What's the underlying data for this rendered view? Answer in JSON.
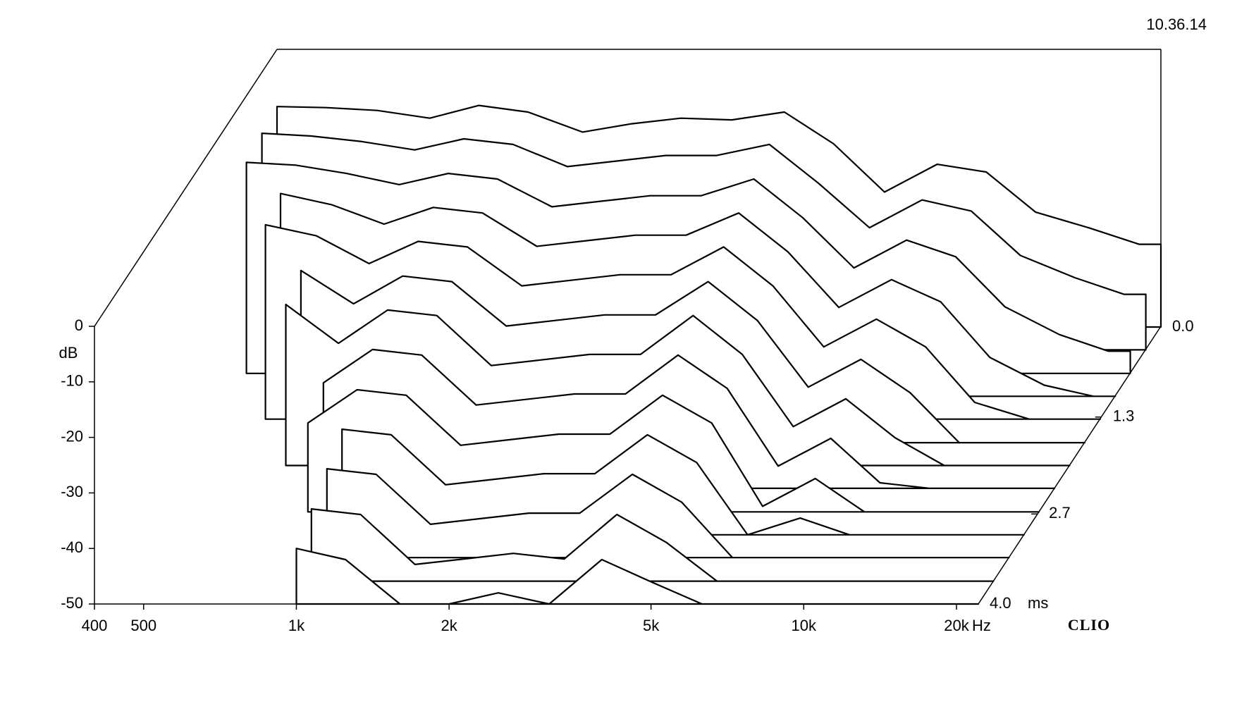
{
  "chart_data": {
    "type": "waterfall",
    "timestamp": "10.36.14",
    "brand": "CLIO",
    "y_label": "dB",
    "x_unit": "Hz",
    "z_unit": "ms",
    "xscale": "log",
    "xlim": [
      400,
      20000
    ],
    "ylim": [
      -50,
      0
    ],
    "zlim": [
      0,
      4
    ],
    "xticks": [
      400,
      500,
      {
        "value": 1000,
        "label": "1k"
      },
      {
        "value": 2000,
        "label": "2k"
      },
      {
        "value": 5000,
        "label": "5k"
      },
      {
        "value": 10000,
        "label": "10k"
      },
      {
        "value": 20000,
        "label": "20k"
      }
    ],
    "yticks": [
      0,
      -10,
      -20,
      -30,
      -40,
      -50
    ],
    "zticks": [
      {
        "value": 0,
        "label": "0.0"
      },
      1.3,
      2.7,
      {
        "value": 4,
        "label": "4.0"
      }
    ],
    "x": [
      400,
      500,
      630,
      800,
      1000,
      1250,
      1600,
      2000,
      2500,
      3150,
      4000,
      5000,
      6300,
      8000,
      10000,
      12500,
      16000,
      20000
    ],
    "series": [
      {
        "time": 0,
        "values": [
          -10.3,
          -10.5,
          -11,
          -12.4,
          -10.1,
          -11.3,
          -14.9,
          -13.4,
          -12.4,
          -12.7,
          -11.3,
          -17,
          -25.7,
          -20.7,
          -22.1,
          -29.3,
          -32.2,
          -35.1
        ]
      },
      {
        "time": 0.33,
        "values": [
          -11,
          -11.5,
          -12.5,
          -14,
          -12,
          -13,
          -17,
          -16,
          -15,
          -15,
          -13,
          -20,
          -28,
          -23,
          -25,
          -33,
          -37,
          -40
        ]
      },
      {
        "time": 0.67,
        "values": [
          -12,
          -12.5,
          -14,
          -16,
          -14,
          -15,
          -20,
          -19,
          -18,
          -18,
          -15,
          -22,
          -31,
          -26,
          -29,
          -38,
          -43,
          -46
        ]
      },
      {
        "time": 1.0,
        "values": [
          null,
          -13.5,
          -15.5,
          -19,
          -16,
          -17,
          -23,
          -22,
          -21,
          -21,
          -17,
          -24,
          -34,
          -29,
          -33,
          -43,
          -48,
          -50
        ]
      },
      {
        "time": 1.33,
        "values": [
          null,
          -15,
          -17,
          -22,
          -18,
          -19,
          -26,
          -25,
          -24,
          -24,
          -19,
          -26,
          -37,
          -32,
          -37,
          -47,
          -50,
          -50
        ]
      },
      {
        "time": 1.67,
        "values": [
          null,
          null,
          -19,
          -25,
          -20,
          -21,
          -29,
          -28,
          -27,
          -27,
          -21,
          -28,
          -40,
          -35,
          -41,
          -50,
          -50,
          -50
        ]
      },
      {
        "time": 2.0,
        "values": [
          null,
          null,
          -21,
          -28,
          -22,
          -23,
          -32,
          -31,
          -30,
          -30,
          -23,
          -30,
          -43,
          -38,
          -45,
          -50,
          -50,
          -50
        ]
      },
      {
        "time": 2.33,
        "values": [
          null,
          null,
          null,
          -31,
          -25,
          -26,
          -35,
          -34,
          -33,
          -33,
          -26,
          -32,
          -46,
          -41,
          -49,
          -50,
          -50,
          -50
        ]
      },
      {
        "time": 2.67,
        "values": [
          null,
          null,
          null,
          -34,
          -28,
          -29,
          -38,
          -37,
          -36,
          -36,
          -29,
          -34,
          -49,
          -44,
          -50,
          -50,
          -50,
          -50
        ]
      },
      {
        "time": 3.0,
        "values": [
          null,
          null,
          null,
          null,
          -31,
          -32,
          -41,
          -40,
          -39,
          -39,
          -32,
          -37,
          -50,
          -47,
          -50,
          -50,
          -50,
          -50
        ]
      },
      {
        "time": 3.33,
        "values": [
          null,
          null,
          null,
          null,
          -34,
          -35,
          -44,
          -43,
          -42,
          -42,
          -35,
          -40,
          -50,
          -50,
          -50,
          -50,
          -50,
          -50
        ]
      },
      {
        "time": 3.67,
        "values": [
          null,
          null,
          null,
          null,
          -37,
          -38,
          -47,
          -46,
          -45,
          -46,
          -38,
          -43,
          -50,
          -50,
          -50,
          -50,
          -50,
          -50
        ]
      },
      {
        "time": 4.0,
        "values": [
          null,
          null,
          null,
          null,
          -40,
          -42,
          -50,
          -50,
          -48,
          -50,
          -42,
          -46,
          -50,
          -50,
          -50,
          -50,
          -50,
          -50
        ]
      }
    ]
  }
}
